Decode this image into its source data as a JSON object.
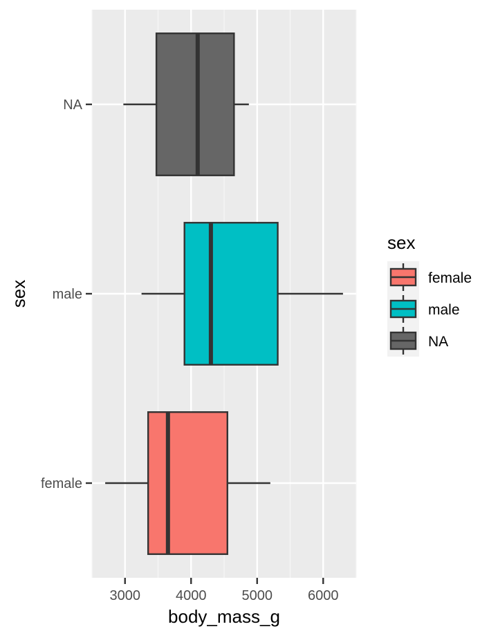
{
  "chart_data": {
    "type": "boxplot",
    "orientation": "horizontal",
    "xlabel": "body_mass_g",
    "ylabel": "sex",
    "xlim": [
      2500,
      6500
    ],
    "x_ticks": [
      3000,
      4000,
      5000,
      6000
    ],
    "x_tick_labels": [
      "3000",
      "4000",
      "5000",
      "6000"
    ],
    "categories": [
      "female",
      "male",
      "NA"
    ],
    "grid": true,
    "series": [
      {
        "name": "female",
        "color": "#F8766D",
        "whisker_low": 2700,
        "q1": 3350,
        "median": 3650,
        "q3": 4550,
        "whisker_high": 5200
      },
      {
        "name": "male",
        "color": "#00BFC4",
        "whisker_low": 3250,
        "q1": 3900,
        "median": 4300,
        "q3": 5312,
        "whisker_high": 6300
      },
      {
        "name": "NA",
        "color": "#666666",
        "whisker_low": 2975,
        "q1": 3475,
        "median": 4100,
        "q3": 4650,
        "whisker_high": 4875
      }
    ],
    "legend": {
      "title": "sex",
      "position": "right",
      "entries": [
        "female",
        "male",
        "NA"
      ]
    }
  }
}
